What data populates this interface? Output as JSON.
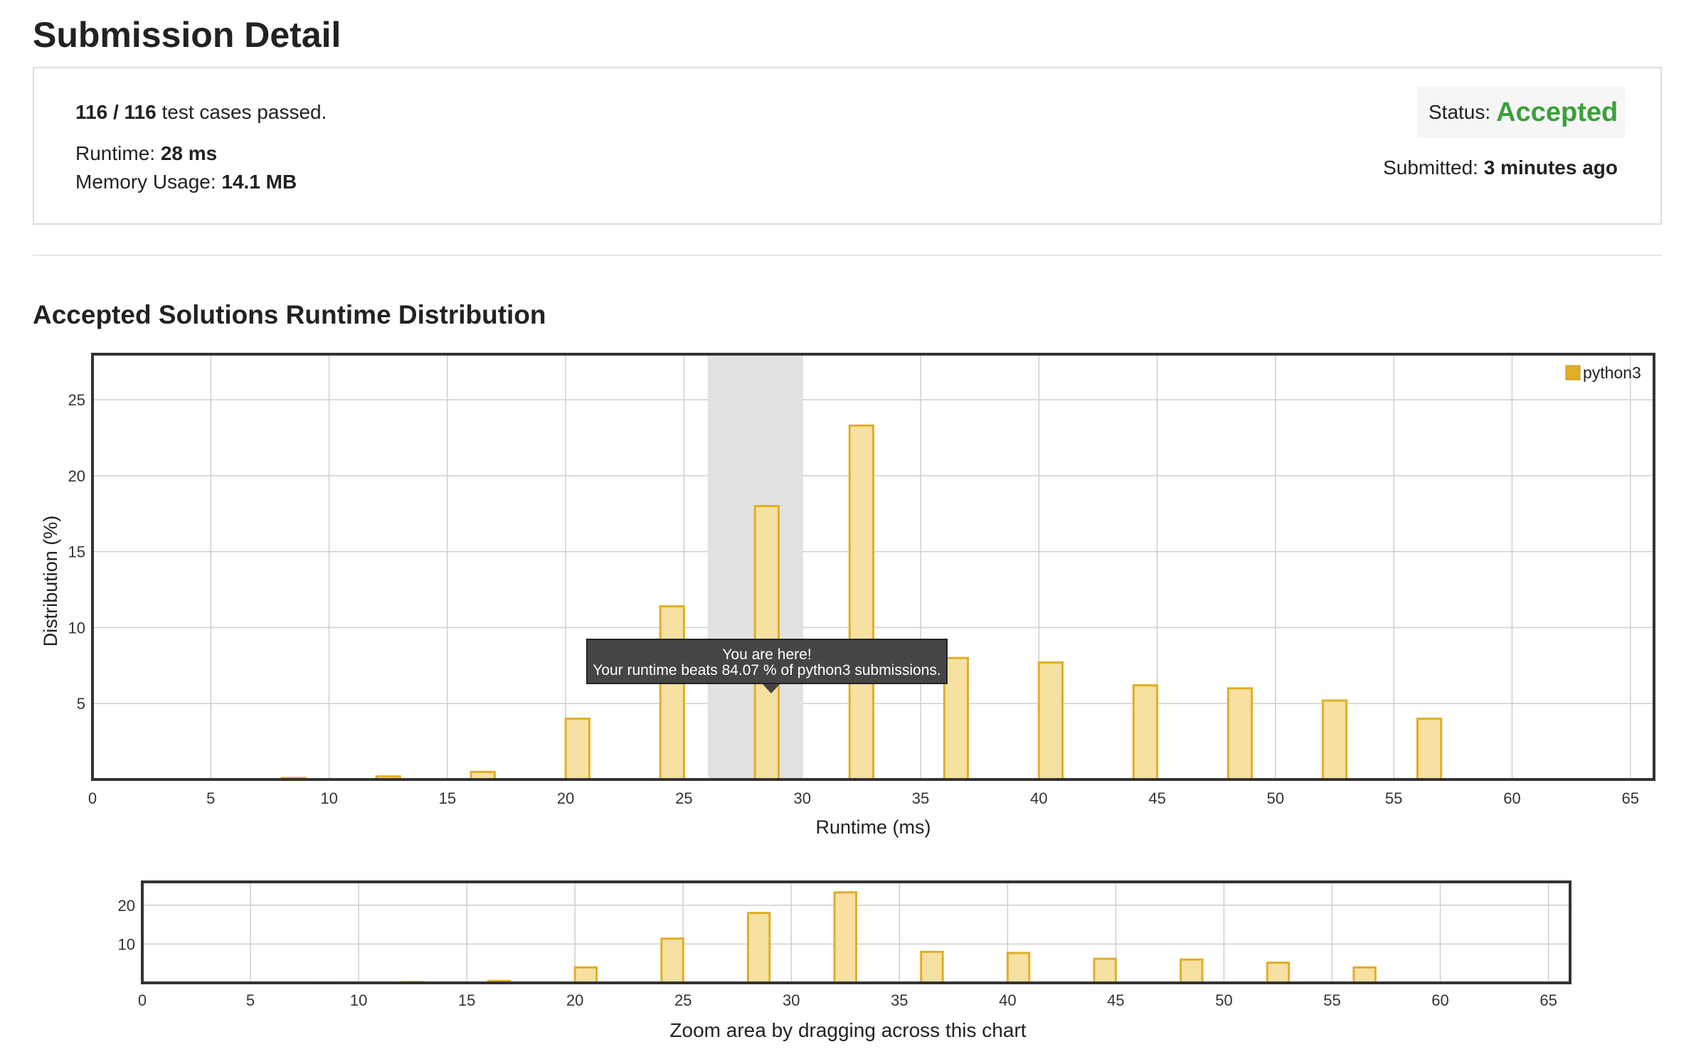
{
  "page_title": "Submission Detail",
  "summary": {
    "tests_passed": "116 / 116",
    "tests_suffix": "test cases passed.",
    "runtime_label": "Runtime:",
    "runtime_value": "28 ms",
    "memory_label": "Memory Usage:",
    "memory_value": "14.1 MB",
    "status_label": "Status:",
    "status_value": "Accepted",
    "submitted_label": "Submitted:",
    "submitted_value": "3 minutes ago"
  },
  "colors": {
    "accepted_green": "#3aa03a",
    "bar_fill": "#f6e1a3",
    "bar_stroke": "#e2ae25",
    "highlight_band": "#e2e2e2",
    "tooltip_bg": "#454545"
  },
  "section_title": "Accepted Solutions Runtime Distribution",
  "tooltip": {
    "line1": "You are here!",
    "line2": "Your runtime beats 84.07 % of python3 submissions."
  },
  "zoom_caption": "Zoom area by dragging across this chart",
  "chart_data": [
    {
      "type": "bar",
      "series": [
        {
          "name": "python3",
          "points": [
            {
              "x": 8.5,
              "y": 0.1
            },
            {
              "x": 12.5,
              "y": 0.2
            },
            {
              "x": 16.5,
              "y": 0.5
            },
            {
              "x": 20.5,
              "y": 4.0
            },
            {
              "x": 24.5,
              "y": 11.4
            },
            {
              "x": 28.5,
              "y": 18.0
            },
            {
              "x": 32.5,
              "y": 23.3
            },
            {
              "x": 36.5,
              "y": 8.0
            },
            {
              "x": 40.5,
              "y": 7.7
            },
            {
              "x": 44.5,
              "y": 6.2
            },
            {
              "x": 48.5,
              "y": 6.0
            },
            {
              "x": 52.5,
              "y": 5.2
            },
            {
              "x": 56.5,
              "y": 4.0
            }
          ]
        }
      ],
      "xlabel": "Runtime (ms)",
      "ylabel": "Distribution (%)",
      "xlim": [
        0,
        66
      ],
      "ylim": [
        0,
        28
      ],
      "xticks": [
        "0",
        "5",
        "10",
        "15",
        "20",
        "25",
        "30",
        "35",
        "40",
        "45",
        "50",
        "55",
        "60",
        "65"
      ],
      "yticks": [
        "5",
        "10",
        "15",
        "20",
        "25"
      ],
      "highlight_range": [
        26,
        30
      ],
      "legend": "top-right",
      "grid": true
    },
    {
      "type": "bar",
      "series": [
        {
          "points": [
            {
              "x": 8.5,
              "y": 0.1
            },
            {
              "x": 12.5,
              "y": 0.2
            },
            {
              "x": 16.5,
              "y": 0.5
            },
            {
              "x": 20.5,
              "y": 4.0
            },
            {
              "x": 24.5,
              "y": 11.4
            },
            {
              "x": 28.5,
              "y": 18.0
            },
            {
              "x": 32.5,
              "y": 23.3
            },
            {
              "x": 36.5,
              "y": 8.0
            },
            {
              "x": 40.5,
              "y": 7.7
            },
            {
              "x": 44.5,
              "y": 6.2
            },
            {
              "x": 48.5,
              "y": 6.0
            },
            {
              "x": 52.5,
              "y": 5.2
            },
            {
              "x": 56.5,
              "y": 4.0
            }
          ]
        }
      ],
      "xlim": [
        0,
        66
      ],
      "ylim": [
        0,
        26
      ],
      "xticks": [
        "0",
        "5",
        "10",
        "15",
        "20",
        "25",
        "30",
        "35",
        "40",
        "45",
        "50",
        "55",
        "60",
        "65"
      ],
      "yticks": [
        "10",
        "20"
      ],
      "grid": true
    }
  ]
}
